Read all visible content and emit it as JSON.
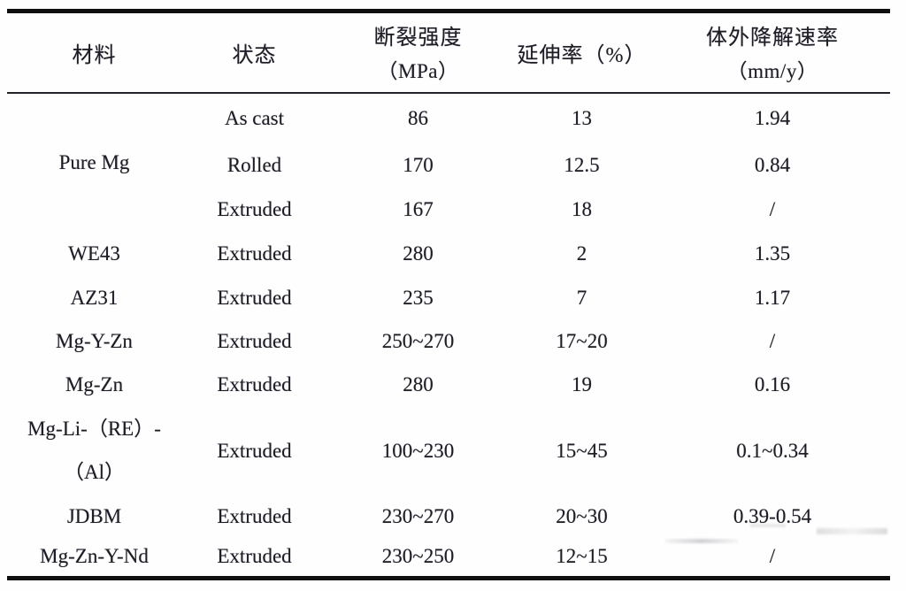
{
  "page": {
    "background": "#fefefe",
    "text_color": "#1d1d25",
    "rule_color": "#0f0f0f"
  },
  "table": {
    "columns": [
      {
        "title": "材料",
        "unit": ""
      },
      {
        "title": "状态",
        "unit": ""
      },
      {
        "title": "断裂强度",
        "unit": "（MPa）"
      },
      {
        "title": "延伸率（%）",
        "unit": ""
      },
      {
        "title": "体外降解速率",
        "unit": "（mm/y）"
      }
    ],
    "rows": [
      {
        "material": "Pure Mg",
        "state": "As cast",
        "strength": "86",
        "elongation": "13",
        "degradation": "1.94"
      },
      {
        "state": "Rolled",
        "strength": "170",
        "elongation": "12.5",
        "degradation": "0.84"
      },
      {
        "state": "Extruded",
        "strength": "167",
        "elongation": "18",
        "degradation": "/"
      },
      {
        "material": "WE43",
        "state": "Extruded",
        "strength": "280",
        "elongation": "2",
        "degradation": "1.35"
      },
      {
        "material": "AZ31",
        "state": "Extruded",
        "strength": "235",
        "elongation": "7",
        "degradation": "1.17"
      },
      {
        "material": "Mg-Y-Zn",
        "state": "Extruded",
        "strength": "250~270",
        "elongation": "17~20",
        "degradation": "/"
      },
      {
        "material": "Mg-Zn",
        "state": "Extruded",
        "strength": "280",
        "elongation": "19",
        "degradation": "0.16"
      },
      {
        "material_line1": "Mg-Li-（RE）-",
        "material_line2": "（Al）",
        "state": "Extruded",
        "strength": "100~230",
        "elongation": "15~45",
        "degradation": "0.1~0.34"
      },
      {
        "material": "JDBM",
        "state": "Extruded",
        "strength": "230~270",
        "elongation": "20~30",
        "degradation": "0.39-0.54"
      },
      {
        "material": "Mg-Zn-Y-Nd",
        "state": "Extruded",
        "strength": "230~250",
        "elongation": "12~15",
        "degradation": "/"
      }
    ]
  }
}
